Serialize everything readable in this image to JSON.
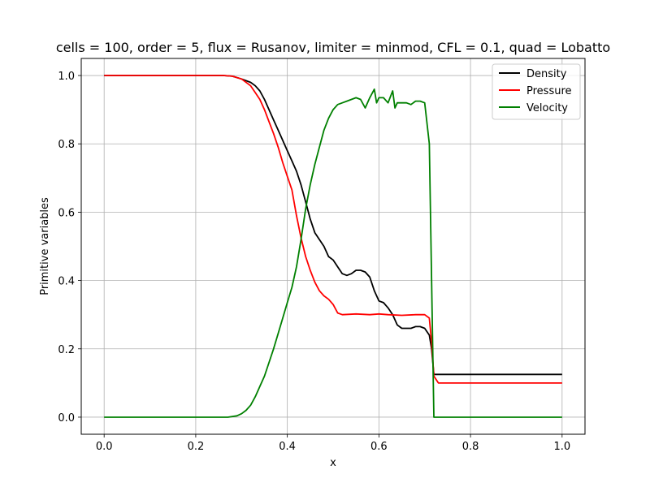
{
  "chart_data": {
    "type": "line",
    "title": "cells = 100, order = 5, flux = Rusanov, limiter = minmod, CFL = 0.1, quad = Lobatto",
    "xlabel": "x",
    "ylabel": "Primitive variables",
    "xlim": [
      -0.05,
      1.05
    ],
    "ylim": [
      -0.05,
      1.05
    ],
    "xticks": [
      0.0,
      0.2,
      0.4,
      0.6,
      0.8,
      1.0
    ],
    "yticks": [
      0.0,
      0.2,
      0.4,
      0.6,
      0.8,
      1.0
    ],
    "xtick_labels": [
      "0.0",
      "0.2",
      "0.4",
      "0.6",
      "0.8",
      "1.0"
    ],
    "ytick_labels": [
      "0.0",
      "0.2",
      "0.4",
      "0.6",
      "0.8",
      "1.0"
    ],
    "grid": true,
    "legend_position": "top-right",
    "series": [
      {
        "name": "Density",
        "color": "#000000",
        "x": [
          0.0,
          0.26,
          0.28,
          0.3,
          0.32,
          0.33,
          0.34,
          0.35,
          0.36,
          0.37,
          0.38,
          0.39,
          0.4,
          0.41,
          0.42,
          0.43,
          0.44,
          0.45,
          0.46,
          0.47,
          0.48,
          0.49,
          0.5,
          0.51,
          0.52,
          0.53,
          0.54,
          0.55,
          0.56,
          0.57,
          0.58,
          0.59,
          0.6,
          0.61,
          0.62,
          0.63,
          0.64,
          0.65,
          0.66,
          0.67,
          0.68,
          0.69,
          0.7,
          0.71,
          0.715,
          0.72,
          0.73,
          1.0
        ],
        "y": [
          1.0,
          1.0,
          0.998,
          0.99,
          0.98,
          0.97,
          0.955,
          0.93,
          0.9,
          0.87,
          0.84,
          0.81,
          0.78,
          0.75,
          0.72,
          0.68,
          0.63,
          0.58,
          0.54,
          0.52,
          0.5,
          0.47,
          0.46,
          0.44,
          0.42,
          0.415,
          0.42,
          0.43,
          0.43,
          0.425,
          0.41,
          0.37,
          0.34,
          0.335,
          0.32,
          0.3,
          0.27,
          0.26,
          0.26,
          0.26,
          0.265,
          0.265,
          0.26,
          0.24,
          0.2,
          0.125,
          0.125,
          0.125
        ]
      },
      {
        "name": "Pressure",
        "color": "#ff0000",
        "x": [
          0.0,
          0.26,
          0.28,
          0.3,
          0.32,
          0.33,
          0.34,
          0.35,
          0.36,
          0.37,
          0.38,
          0.39,
          0.4,
          0.41,
          0.42,
          0.43,
          0.44,
          0.45,
          0.46,
          0.47,
          0.48,
          0.49,
          0.5,
          0.51,
          0.52,
          0.55,
          0.58,
          0.6,
          0.62,
          0.65,
          0.68,
          0.7,
          0.71,
          0.715,
          0.72,
          0.73,
          1.0
        ],
        "y": [
          1.0,
          1.0,
          0.998,
          0.99,
          0.97,
          0.95,
          0.93,
          0.9,
          0.865,
          0.83,
          0.79,
          0.745,
          0.705,
          0.665,
          0.59,
          0.525,
          0.47,
          0.43,
          0.395,
          0.37,
          0.355,
          0.345,
          0.33,
          0.305,
          0.3,
          0.302,
          0.3,
          0.302,
          0.3,
          0.298,
          0.3,
          0.3,
          0.29,
          0.22,
          0.12,
          0.1,
          0.1
        ]
      },
      {
        "name": "Velocity",
        "color": "#008000",
        "x": [
          0.0,
          0.27,
          0.29,
          0.3,
          0.31,
          0.32,
          0.33,
          0.34,
          0.35,
          0.36,
          0.37,
          0.38,
          0.39,
          0.4,
          0.41,
          0.42,
          0.43,
          0.44,
          0.45,
          0.46,
          0.47,
          0.48,
          0.49,
          0.5,
          0.51,
          0.52,
          0.53,
          0.54,
          0.55,
          0.56,
          0.57,
          0.58,
          0.59,
          0.595,
          0.6,
          0.61,
          0.62,
          0.63,
          0.635,
          0.64,
          0.65,
          0.66,
          0.67,
          0.68,
          0.69,
          0.7,
          0.71,
          0.715,
          0.72,
          1.0
        ],
        "y": [
          0.0,
          0.0,
          0.004,
          0.01,
          0.02,
          0.035,
          0.06,
          0.09,
          0.12,
          0.16,
          0.2,
          0.245,
          0.29,
          0.335,
          0.38,
          0.44,
          0.52,
          0.61,
          0.68,
          0.74,
          0.79,
          0.84,
          0.875,
          0.9,
          0.915,
          0.92,
          0.925,
          0.93,
          0.935,
          0.93,
          0.905,
          0.935,
          0.96,
          0.92,
          0.935,
          0.935,
          0.92,
          0.955,
          0.905,
          0.92,
          0.92,
          0.92,
          0.915,
          0.925,
          0.925,
          0.92,
          0.8,
          0.4,
          0.0,
          0.0
        ]
      }
    ]
  }
}
